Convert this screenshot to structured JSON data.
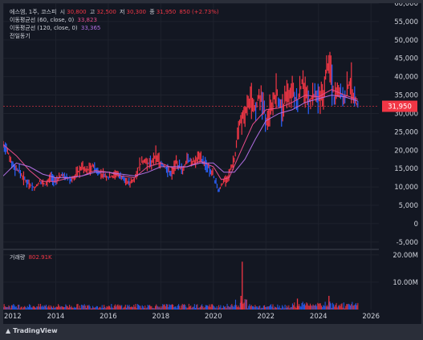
{
  "header": {
    "symbol": "에스엠, 1주, 코스피",
    "open_label": "시",
    "open": "30,800",
    "high_label": "고",
    "high": "32,500",
    "low_label": "저",
    "low": "30,300",
    "close_label": "종",
    "close": "31,950",
    "change": "850 (+2.73%)",
    "ma60_label": "이동평균선 (60, close, 0)",
    "ma60_value": "33,823",
    "ma120_label": "이동평균선 (120, close, 0)",
    "ma120_value": "33,365",
    "prev_vol_label": "전일동기"
  },
  "price_tag": "31,950",
  "volume_label": "거래량",
  "volume_value": "802.91K",
  "brand": "TradingView",
  "colors": {
    "up": "#f23645",
    "down": "#2962ff",
    "ma60": "#e94d8a",
    "ma120": "#b16fe3",
    "bg": "#131722"
  },
  "chart_data": [
    {
      "type": "line",
      "title": "",
      "y_unit": "KRW",
      "yticks": [
        -5000,
        0,
        5000,
        10000,
        15000,
        20000,
        25000,
        30000,
        35000,
        40000,
        45000,
        50000,
        55000,
        60000
      ],
      "ytick_labels": [
        "-5,000",
        "0",
        "5,000",
        "10,000",
        "15,000",
        "20,000",
        "25,000",
        "30,000",
        "35,000",
        "40,000",
        "45,000",
        "50,000",
        "55,000",
        "60,000"
      ],
      "ylim": [
        -7000,
        60000
      ],
      "xlim": [
        2012.0,
        2026.3
      ],
      "xticks": [
        2012,
        2014,
        2016,
        2018,
        2020,
        2022,
        2024,
        2026
      ],
      "xtick_labels": [
        "2012",
        "2014",
        "2016",
        "2018",
        "2020",
        "2022",
        "2024",
        "2026"
      ],
      "current_price": 31950,
      "series": [
        {
          "role": "price",
          "points": [
            [
              2012.0,
              21000
            ],
            [
              2012.2,
              19000
            ],
            [
              2012.4,
              15500
            ],
            [
              2012.6,
              14500
            ],
            [
              2012.8,
              12000
            ],
            [
              2013.0,
              11000
            ],
            [
              2013.2,
              9500
            ],
            [
              2013.4,
              11500
            ],
            [
              2013.6,
              10500
            ],
            [
              2013.8,
              12500
            ],
            [
              2014.0,
              11500
            ],
            [
              2014.2,
              13000
            ],
            [
              2014.4,
              12500
            ],
            [
              2014.6,
              12000
            ],
            [
              2014.8,
              13500
            ],
            [
              2015.0,
              15500
            ],
            [
              2015.2,
              14500
            ],
            [
              2015.4,
              16000
            ],
            [
              2015.6,
              14000
            ],
            [
              2015.8,
              13500
            ],
            [
              2016.0,
              12500
            ],
            [
              2016.2,
              13000
            ],
            [
              2016.4,
              13500
            ],
            [
              2016.6,
              12000
            ],
            [
              2016.8,
              11000
            ],
            [
              2017.0,
              12500
            ],
            [
              2017.2,
              16000
            ],
            [
              2017.4,
              17500
            ],
            [
              2017.6,
              16000
            ],
            [
              2017.8,
              18500
            ],
            [
              2018.0,
              16500
            ],
            [
              2018.2,
              15000
            ],
            [
              2018.4,
              13500
            ],
            [
              2018.6,
              16500
            ],
            [
              2018.8,
              14500
            ],
            [
              2019.0,
              17500
            ],
            [
              2019.2,
              16500
            ],
            [
              2019.4,
              18000
            ],
            [
              2019.6,
              17000
            ],
            [
              2019.8,
              15500
            ],
            [
              2020.0,
              13000
            ],
            [
              2020.2,
              9000
            ],
            [
              2020.4,
              11500
            ],
            [
              2020.6,
              13500
            ],
            [
              2020.8,
              17500
            ],
            [
              2021.0,
              27000
            ],
            [
              2021.2,
              30000
            ],
            [
              2021.4,
              34000
            ],
            [
              2021.6,
              32000
            ],
            [
              2021.8,
              35000
            ],
            [
              2022.0,
              28000
            ],
            [
              2022.2,
              32000
            ],
            [
              2022.4,
              36000
            ],
            [
              2022.6,
              31000
            ],
            [
              2022.8,
              35000
            ],
            [
              2023.0,
              37000
            ],
            [
              2023.2,
              33000
            ],
            [
              2023.4,
              39000
            ],
            [
              2023.6,
              33000
            ],
            [
              2023.8,
              35000
            ],
            [
              2024.0,
              33000
            ],
            [
              2024.2,
              36000
            ],
            [
              2024.4,
              45000
            ],
            [
              2024.6,
              34000
            ],
            [
              2024.8,
              36000
            ],
            [
              2025.0,
              33000
            ],
            [
              2025.2,
              39000
            ],
            [
              2025.35,
              35000
            ],
            [
              2025.5,
              31950
            ]
          ]
        },
        {
          "role": "ma60",
          "name": "이동평균선 (60, close, 0)",
          "points": [
            [
              2012.0,
              21500
            ],
            [
              2012.5,
              18500
            ],
            [
              2013.0,
              14500
            ],
            [
              2013.5,
              11500
            ],
            [
              2014.0,
              11500
            ],
            [
              2014.5,
              12500
            ],
            [
              2015.0,
              13000
            ],
            [
              2015.5,
              14500
            ],
            [
              2016.0,
              14000
            ],
            [
              2016.5,
              13000
            ],
            [
              2017.0,
              12500
            ],
            [
              2017.5,
              15500
            ],
            [
              2018.0,
              16500
            ],
            [
              2018.5,
              15000
            ],
            [
              2019.0,
              15500
            ],
            [
              2019.5,
              17000
            ],
            [
              2020.0,
              15500
            ],
            [
              2020.3,
              12000
            ],
            [
              2020.6,
              12500
            ],
            [
              2021.0,
              19000
            ],
            [
              2021.5,
              27000
            ],
            [
              2022.0,
              31000
            ],
            [
              2022.5,
              31500
            ],
            [
              2023.0,
              33000
            ],
            [
              2023.5,
              35000
            ],
            [
              2024.0,
              34500
            ],
            [
              2024.5,
              36500
            ],
            [
              2025.0,
              35000
            ],
            [
              2025.5,
              33823
            ]
          ]
        },
        {
          "role": "ma120",
          "name": "이동평균선 (120, close, 0)",
          "points": [
            [
              2012.0,
              13000
            ],
            [
              2012.5,
              16500
            ],
            [
              2013.0,
              15500
            ],
            [
              2013.5,
              13500
            ],
            [
              2014.0,
              12500
            ],
            [
              2014.5,
              12500
            ],
            [
              2015.0,
              13000
            ],
            [
              2015.5,
              14000
            ],
            [
              2016.0,
              14000
            ],
            [
              2016.5,
              13500
            ],
            [
              2017.0,
              13000
            ],
            [
              2017.5,
              14000
            ],
            [
              2018.0,
              15500
            ],
            [
              2018.5,
              15500
            ],
            [
              2019.0,
              15500
            ],
            [
              2019.5,
              16500
            ],
            [
              2020.0,
              16500
            ],
            [
              2020.4,
              14000
            ],
            [
              2020.8,
              14000
            ],
            [
              2021.2,
              17500
            ],
            [
              2021.6,
              23000
            ],
            [
              2022.0,
              28000
            ],
            [
              2022.5,
              30000
            ],
            [
              2023.0,
              31000
            ],
            [
              2023.5,
              33000
            ],
            [
              2024.0,
              34000
            ],
            [
              2024.5,
              35000
            ],
            [
              2025.0,
              34500
            ],
            [
              2025.5,
              33365
            ]
          ]
        }
      ]
    },
    {
      "type": "bar",
      "title": "",
      "yticks": [
        10000000,
        20000000
      ],
      "ytick_labels": [
        "10.00M",
        "20.00M"
      ],
      "ylim": [
        0,
        22000000
      ],
      "current_volume": 802910,
      "spikes": [
        [
          2021.1,
          17500000
        ],
        [
          2021.05,
          5000000
        ],
        [
          2023.2,
          4000000
        ],
        [
          2024.4,
          5000000
        ]
      ]
    }
  ]
}
